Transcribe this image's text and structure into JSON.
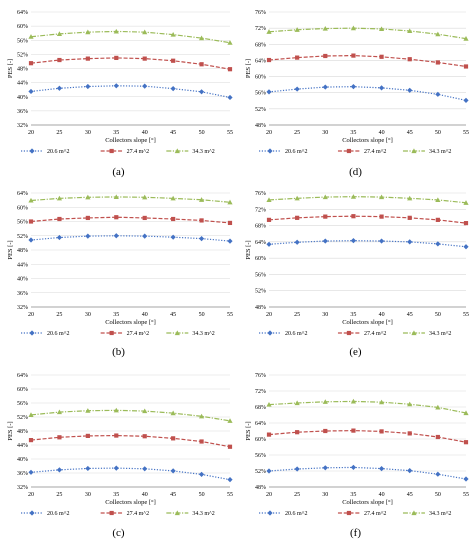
{
  "chart_data": [
    {
      "type": "line",
      "label": "(a)",
      "xlabel": "Collectors slope [°]",
      "ylabel": "PES [-]",
      "x": [
        20,
        25,
        30,
        35,
        40,
        45,
        50,
        55
      ],
      "ylim": [
        32,
        64
      ],
      "yticks": [
        "32%",
        "36%",
        "40%",
        "44%",
        "48%",
        "52%",
        "56%",
        "60%",
        "64%"
      ],
      "series": [
        {
          "name": "20.6 m^2",
          "color": "#4472C4",
          "marker": "diamond",
          "values": [
            41.5,
            42.4,
            42.9,
            43.1,
            43.0,
            42.3,
            41.4,
            39.8
          ]
        },
        {
          "name": "27.4 m^2",
          "color": "#C0504D",
          "marker": "square",
          "values": [
            49.5,
            50.4,
            50.8,
            51.0,
            50.8,
            50.2,
            49.2,
            47.8
          ]
        },
        {
          "name": "34.3 m^2",
          "color": "#9BBB59",
          "marker": "triangle",
          "values": [
            57.0,
            57.8,
            58.3,
            58.5,
            58.3,
            57.6,
            56.6,
            55.3
          ]
        }
      ]
    },
    {
      "type": "line",
      "label": "(d)",
      "xlabel": "Collectors slope [°]",
      "ylabel": "PES [-]",
      "x": [
        20,
        25,
        30,
        35,
        40,
        45,
        50,
        55
      ],
      "ylim": [
        48,
        76
      ],
      "yticks": [
        "48%",
        "52%",
        "56%",
        "60%",
        "64%",
        "68%",
        "72%",
        "76%"
      ],
      "series": [
        {
          "name": "20.6 m^2",
          "color": "#4472C4",
          "marker": "diamond",
          "values": [
            56.2,
            56.9,
            57.4,
            57.5,
            57.2,
            56.6,
            55.6,
            54.1
          ]
        },
        {
          "name": "27.4 m^2",
          "color": "#C0504D",
          "marker": "square",
          "values": [
            64.1,
            64.7,
            65.1,
            65.2,
            64.9,
            64.3,
            63.5,
            62.5
          ]
        },
        {
          "name": "34.3 m^2",
          "color": "#9BBB59",
          "marker": "triangle",
          "values": [
            71.1,
            71.6,
            71.9,
            72.0,
            71.8,
            71.3,
            70.5,
            69.4
          ]
        }
      ]
    },
    {
      "type": "line",
      "label": "(b)",
      "xlabel": "Collectors slope [°]",
      "ylabel": "PES [-]",
      "x": [
        20,
        25,
        30,
        35,
        40,
        45,
        50,
        55
      ],
      "ylim": [
        32,
        64
      ],
      "yticks": [
        "32%",
        "36%",
        "40%",
        "44%",
        "48%",
        "52%",
        "56%",
        "60%",
        "64%"
      ],
      "series": [
        {
          "name": "20.6 m^2",
          "color": "#4472C4",
          "marker": "diamond",
          "values": [
            50.8,
            51.5,
            51.9,
            52.0,
            51.9,
            51.6,
            51.2,
            50.5
          ]
        },
        {
          "name": "27.4 m^2",
          "color": "#C0504D",
          "marker": "square",
          "values": [
            56.0,
            56.7,
            57.0,
            57.2,
            57.0,
            56.7,
            56.3,
            55.6
          ]
        },
        {
          "name": "34.3 m^2",
          "color": "#9BBB59",
          "marker": "triangle",
          "values": [
            61.9,
            62.5,
            62.8,
            62.9,
            62.8,
            62.5,
            62.1,
            61.4
          ]
        }
      ]
    },
    {
      "type": "line",
      "label": "(e)",
      "xlabel": "Collectors slope [°]",
      "ylabel": "PES [-]",
      "x": [
        20,
        25,
        30,
        35,
        40,
        45,
        50,
        55
      ],
      "ylim": [
        48,
        76
      ],
      "yticks": [
        "48%",
        "52%",
        "56%",
        "60%",
        "64%",
        "68%",
        "72%",
        "76%"
      ],
      "series": [
        {
          "name": "20.6 m^2",
          "color": "#4472C4",
          "marker": "diamond",
          "values": [
            63.4,
            63.9,
            64.2,
            64.3,
            64.2,
            64.0,
            63.5,
            62.8
          ]
        },
        {
          "name": "27.4 m^2",
          "color": "#C0504D",
          "marker": "square",
          "values": [
            69.4,
            69.9,
            70.2,
            70.3,
            70.2,
            69.9,
            69.4,
            68.6
          ]
        },
        {
          "name": "34.3 m^2",
          "color": "#9BBB59",
          "marker": "triangle",
          "values": [
            74.3,
            74.7,
            75.0,
            75.1,
            75.0,
            74.7,
            74.3,
            73.6
          ]
        }
      ]
    },
    {
      "type": "line",
      "label": "(c)",
      "xlabel": "Collectors slope [°]",
      "ylabel": "PES [-]",
      "x": [
        20,
        25,
        30,
        35,
        40,
        45,
        50,
        55
      ],
      "ylim": [
        32,
        64
      ],
      "yticks": [
        "32%",
        "36%",
        "40%",
        "44%",
        "48%",
        "52%",
        "56%",
        "60%",
        "64%"
      ],
      "series": [
        {
          "name": "20.6 m^2",
          "color": "#4472C4",
          "marker": "diamond",
          "values": [
            36.2,
            36.9,
            37.3,
            37.4,
            37.2,
            36.6,
            35.6,
            34.1
          ]
        },
        {
          "name": "27.4 m^2",
          "color": "#C0504D",
          "marker": "square",
          "values": [
            45.4,
            46.2,
            46.6,
            46.7,
            46.5,
            45.9,
            45.0,
            43.5
          ]
        },
        {
          "name": "34.3 m^2",
          "color": "#9BBB59",
          "marker": "triangle",
          "values": [
            52.6,
            53.4,
            53.8,
            53.9,
            53.7,
            53.1,
            52.2,
            50.9
          ]
        }
      ]
    },
    {
      "type": "line",
      "label": "(f)",
      "xlabel": "Collectors slope [°]",
      "ylabel": "PES [-]",
      "x": [
        20,
        25,
        30,
        35,
        40,
        45,
        50,
        55
      ],
      "ylim": [
        48,
        76
      ],
      "yticks": [
        "48%",
        "52%",
        "56%",
        "60%",
        "64%",
        "68%",
        "72%",
        "76%"
      ],
      "series": [
        {
          "name": "20.6 m^2",
          "color": "#4472C4",
          "marker": "diamond",
          "values": [
            52.0,
            52.5,
            52.8,
            52.9,
            52.6,
            52.1,
            51.2,
            50.0
          ]
        },
        {
          "name": "27.4 m^2",
          "color": "#C0504D",
          "marker": "square",
          "values": [
            61.1,
            61.7,
            62.0,
            62.1,
            61.9,
            61.4,
            60.5,
            59.2
          ]
        },
        {
          "name": "34.3 m^2",
          "color": "#9BBB59",
          "marker": "triangle",
          "values": [
            68.6,
            69.0,
            69.3,
            69.4,
            69.2,
            68.7,
            67.9,
            66.5
          ]
        }
      ]
    }
  ]
}
